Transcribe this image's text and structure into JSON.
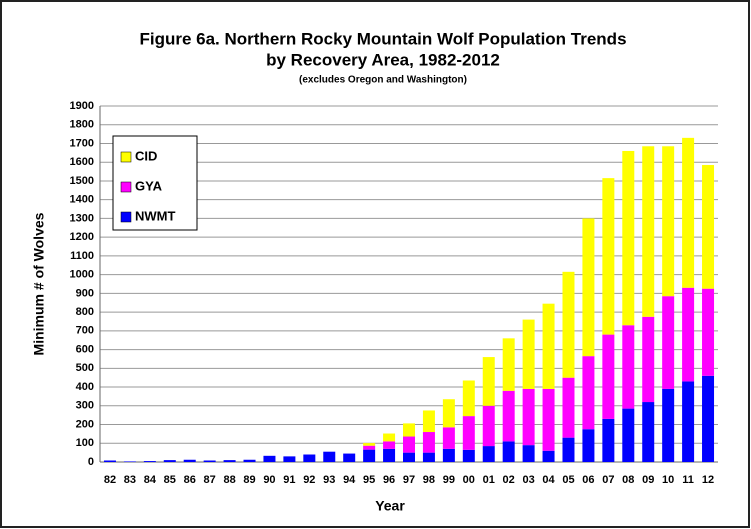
{
  "chart_data": {
    "type": "stacked_bar",
    "title": [
      "Figure 6a.  Northern Rocky Mountain Wolf Population Trends",
      "by Recovery Area, 1982-2012"
    ],
    "subtitle": "(excludes Oregon and Washington)",
    "x_label": "Year",
    "y_label": "Minimum # of Wolves",
    "categories": [
      "82",
      "83",
      "84",
      "85",
      "86",
      "87",
      "88",
      "89",
      "90",
      "91",
      "92",
      "93",
      "94",
      "95",
      "96",
      "97",
      "98",
      "99",
      "00",
      "01",
      "02",
      "03",
      "04",
      "05",
      "06",
      "07",
      "08",
      "09",
      "10",
      "11",
      "12"
    ],
    "series": [
      {
        "name": "NWMT",
        "color": "#0000ff",
        "values": [
          8,
          3,
          5,
          10,
          12,
          8,
          10,
          12,
          33,
          30,
          40,
          55,
          45,
          66,
          70,
          50,
          50,
          70,
          65,
          85,
          110,
          90,
          60,
          130,
          175,
          230,
          285,
          320,
          390,
          430,
          460
        ]
      },
      {
        "name": "GYA",
        "color": "#ff00ff",
        "values": [
          0,
          0,
          0,
          0,
          0,
          0,
          0,
          0,
          0,
          0,
          0,
          0,
          0,
          21,
          40,
          86,
          110,
          115,
          180,
          215,
          270,
          300,
          330,
          320,
          390,
          450,
          445,
          455,
          495,
          500,
          465
        ]
      },
      {
        "name": "CID",
        "color": "#ffff00",
        "values": [
          0,
          0,
          0,
          0,
          0,
          0,
          0,
          0,
          0,
          0,
          0,
          0,
          0,
          14,
          42,
          70,
          115,
          150,
          190,
          260,
          280,
          370,
          455,
          565,
          735,
          835,
          930,
          910,
          800,
          800,
          660
        ]
      }
    ],
    "ylim": [
      0,
      1900
    ],
    "yticks": [
      0,
      100,
      200,
      300,
      400,
      500,
      600,
      700,
      800,
      900,
      1000,
      1100,
      1200,
      1300,
      1400,
      1500,
      1600,
      1700,
      1800,
      1900
    ],
    "grid": true,
    "legend": "upper left"
  }
}
